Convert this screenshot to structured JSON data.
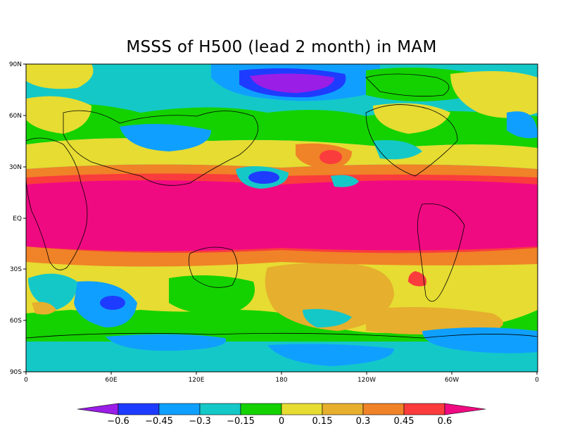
{
  "title": "MSSS of H500 (lead 2 month) in MAM",
  "lat_labels": [
    "90N",
    "60N",
    "30N",
    "EQ",
    "30S",
    "60S",
    "90S"
  ],
  "lon_labels": [
    "0",
    "60E",
    "120E",
    "180",
    "120W",
    "60W",
    "0"
  ],
  "colorbar": {
    "labels": [
      "-0.6",
      "-0.45",
      "-0.3",
      "-0.15",
      "0",
      "0.15",
      "0.3",
      "0.45",
      "0.6"
    ],
    "colors": [
      "#9a1ee6",
      "#1e3cff",
      "#0fa0ff",
      "#14c8c8",
      "#14d200",
      "#e6dc32",
      "#e6af2d",
      "#f08228",
      "#fa3c3c",
      "#f00a82"
    ]
  },
  "colors": {
    "deep_purple": "#9a1ee6",
    "blue": "#1e3cff",
    "sky": "#0fa0ff",
    "cyan": "#14c8c8",
    "green": "#14d200",
    "yellow": "#e6dc32",
    "orange_light": "#e6af2d",
    "orange": "#f08228",
    "red": "#fa3c3c",
    "magenta": "#f00a82"
  }
}
